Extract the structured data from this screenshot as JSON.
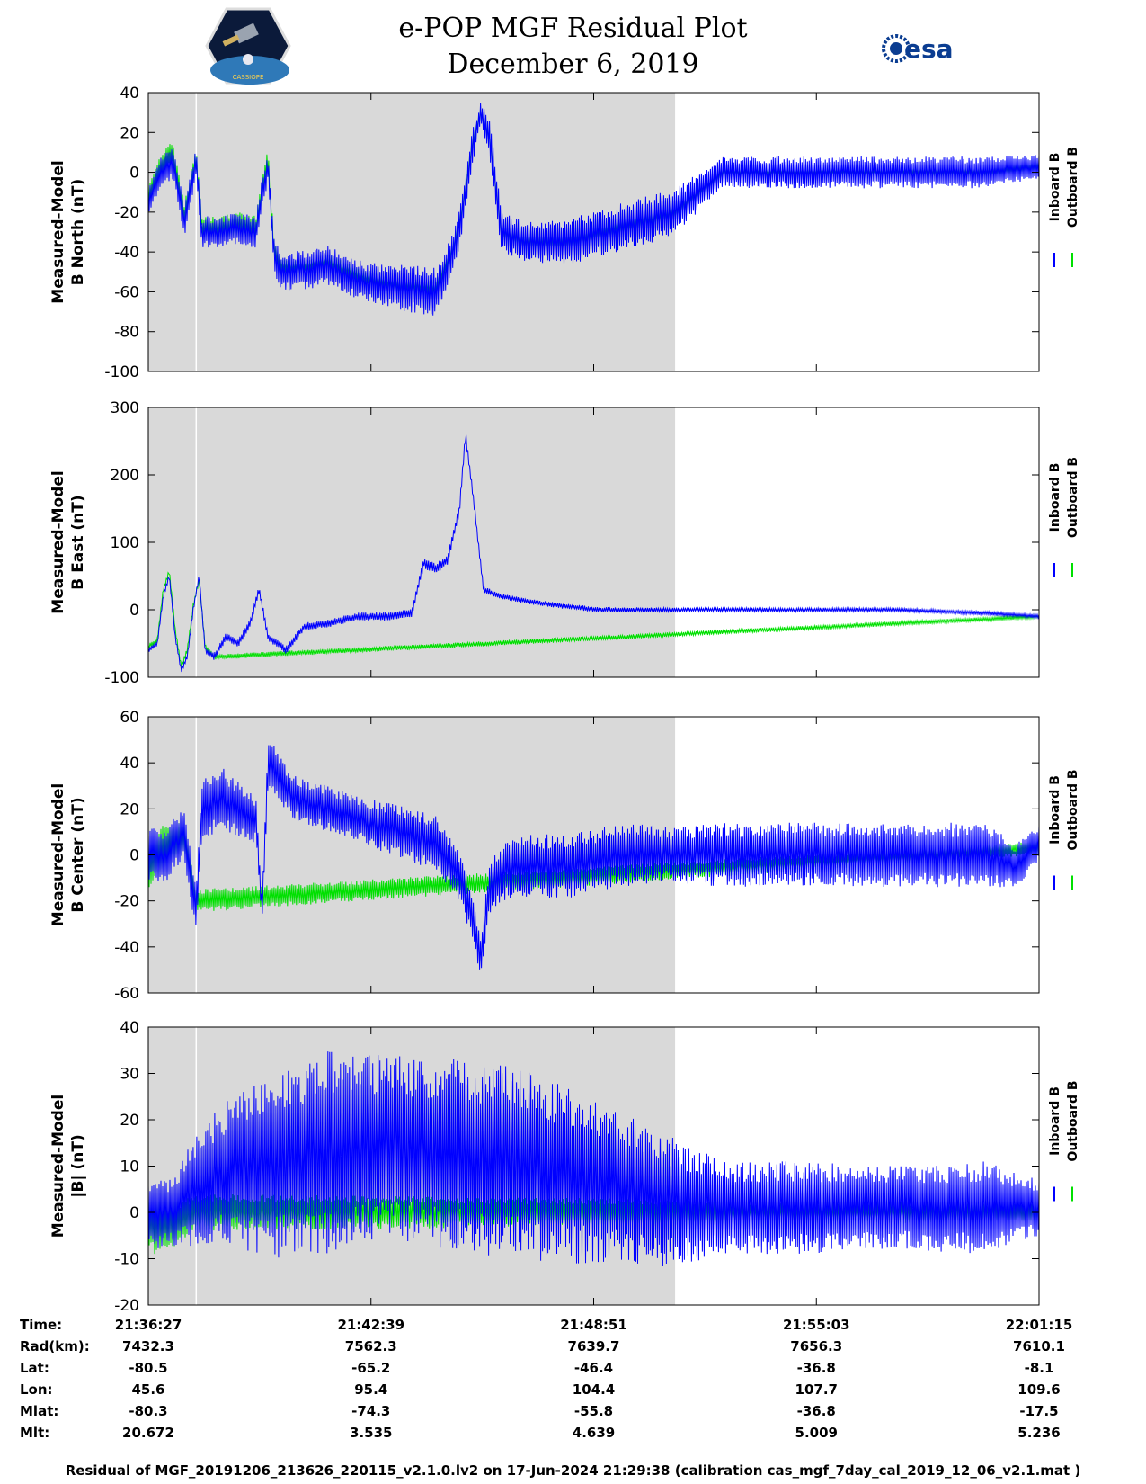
{
  "header": {
    "title_line1": "e-POP MGF Residual Plot",
    "title_line2": "December 6, 2019",
    "logo_left_icon": "cassiope-mission-patch",
    "logo_left_text": "CASSIOPE",
    "logo_right_icon": "esa-logo",
    "logo_right_text": "esa"
  },
  "colors": {
    "inboard": "#0000ff",
    "outboard": "#00e000",
    "shade": "#d9d9d9"
  },
  "chart_data": [
    {
      "type": "line",
      "ylabel_line1": "Measured-Model",
      "ylabel_line2": "B North (nT)",
      "ylim": [
        -100,
        40
      ],
      "yticks": [
        "40",
        "20",
        "0",
        "-20",
        "-40",
        "-60",
        "-80",
        "-100"
      ],
      "x_range_s": [
        0,
        1488
      ],
      "shaded_interval_s": [
        0,
        880
      ],
      "gap_marker_s": 80,
      "legend": [
        "Inboard B",
        "Outboard B"
      ],
      "series": [
        {
          "name": "Inboard B",
          "x_s": [
            0,
            20,
            40,
            50,
            60,
            80,
            90,
            120,
            150,
            180,
            190,
            200,
            210,
            220,
            240,
            300,
            360,
            420,
            480,
            510,
            525,
            540,
            555,
            570,
            590,
            630,
            700,
            760,
            820,
            880,
            960,
            1100,
            1250,
            1400,
            1488
          ],
          "values": [
            -15,
            0,
            5,
            -8,
            -25,
            5,
            -30,
            -30,
            -28,
            -30,
            -10,
            3,
            -40,
            -50,
            -50,
            -47,
            -55,
            -58,
            -60,
            -40,
            -20,
            10,
            30,
            18,
            -30,
            -35,
            -35,
            -30,
            -25,
            -20,
            0,
            0,
            0,
            0,
            3
          ],
          "noise": [
            8,
            8,
            8,
            8,
            8,
            8,
            8,
            8,
            8,
            8,
            8,
            8,
            10,
            10,
            10,
            10,
            10,
            12,
            12,
            10,
            10,
            10,
            5,
            10,
            10,
            10,
            12,
            12,
            12,
            12,
            8,
            8,
            8,
            8,
            6
          ]
        },
        {
          "name": "Outboard B",
          "x_s": [
            0,
            20,
            40,
            50,
            60,
            80,
            90,
            120,
            150,
            180,
            190,
            200,
            210,
            220,
            240,
            300,
            360,
            420,
            480,
            510,
            525,
            540,
            555,
            570,
            590,
            630,
            700,
            760,
            820,
            880,
            960,
            1100,
            1250,
            1400,
            1488
          ],
          "values": [
            -12,
            3,
            10,
            -5,
            -22,
            8,
            -28,
            -28,
            -26,
            -28,
            -8,
            6,
            -38,
            -47,
            -48,
            -45,
            -53,
            -57,
            -58,
            -38,
            -18,
            12,
            30,
            18,
            -30,
            -35,
            -35,
            -30,
            -25,
            -20,
            0,
            0,
            0,
            0,
            3
          ],
          "noise": [
            6,
            6,
            6,
            6,
            6,
            6,
            6,
            6,
            6,
            6,
            6,
            6,
            4,
            4,
            4,
            4,
            4,
            4,
            4,
            3,
            3,
            3,
            2,
            3,
            3,
            3,
            3,
            3,
            3,
            3,
            2,
            2,
            2,
            2,
            2
          ]
        }
      ]
    },
    {
      "type": "line",
      "ylabel_line1": "Measured-Model",
      "ylabel_line2": "B East (nT)",
      "ylim": [
        -100,
        300
      ],
      "yticks": [
        "300",
        "200",
        "100",
        "0",
        "-100"
      ],
      "x_range_s": [
        0,
        1488
      ],
      "shaded_interval_s": [
        0,
        880
      ],
      "gap_marker_s": 80,
      "legend": [
        "Inboard B",
        "Outboard B"
      ],
      "series": [
        {
          "name": "Inboard B",
          "x_s": [
            0,
            15,
            25,
            35,
            45,
            55,
            65,
            75,
            85,
            95,
            110,
            130,
            150,
            170,
            185,
            200,
            230,
            260,
            300,
            350,
            400,
            440,
            460,
            480,
            500,
            520,
            530,
            545,
            560,
            590,
            650,
            750,
            880,
            960,
            1100,
            1250,
            1400,
            1488
          ],
          "values": [
            -60,
            -50,
            20,
            50,
            -40,
            -90,
            -70,
            0,
            50,
            -60,
            -70,
            -40,
            -50,
            -20,
            30,
            -40,
            -60,
            -25,
            -20,
            -10,
            -10,
            -5,
            70,
            60,
            75,
            150,
            260,
            150,
            30,
            20,
            10,
            0,
            0,
            0,
            0,
            0,
            -5,
            -10
          ],
          "noise": [
            4,
            4,
            4,
            4,
            4,
            4,
            4,
            4,
            4,
            4,
            6,
            6,
            6,
            6,
            6,
            6,
            6,
            6,
            6,
            6,
            6,
            6,
            8,
            8,
            8,
            8,
            8,
            6,
            5,
            4,
            4,
            4,
            3,
            3,
            3,
            3,
            3,
            3
          ]
        },
        {
          "name": "Outboard B",
          "x_s": [
            0,
            15,
            25,
            35,
            45,
            55,
            65,
            75,
            85,
            95,
            110,
            1488
          ],
          "values": [
            -55,
            -45,
            30,
            58,
            -30,
            -85,
            -60,
            5,
            45,
            -55,
            -70,
            -10
          ],
          "noise": [
            4,
            4,
            4,
            4,
            4,
            4,
            4,
            4,
            4,
            4,
            4,
            3
          ]
        }
      ]
    },
    {
      "type": "line",
      "ylabel_line1": "Measured-Model",
      "ylabel_line2": "B Center (nT)",
      "ylim": [
        -60,
        60
      ],
      "yticks": [
        "60",
        "40",
        "20",
        "0",
        "-20",
        "-40",
        "-60"
      ],
      "x_range_s": [
        0,
        1488
      ],
      "shaded_interval_s": [
        0,
        880
      ],
      "gap_marker_s": 80,
      "legend": [
        "Inboard B",
        "Outboard B"
      ],
      "series": [
        {
          "name": "Inboard B",
          "x_s": [
            0,
            30,
            60,
            80,
            90,
            120,
            150,
            180,
            190,
            200,
            240,
            300,
            360,
            420,
            480,
            520,
            540,
            555,
            570,
            600,
            700,
            800,
            880,
            960,
            1100,
            1250,
            1400,
            1450,
            1488
          ],
          "values": [
            0,
            0,
            10,
            -25,
            20,
            25,
            20,
            15,
            -25,
            40,
            25,
            20,
            15,
            10,
            5,
            -10,
            -25,
            -45,
            -15,
            -5,
            -5,
            0,
            0,
            0,
            0,
            0,
            0,
            -5,
            5
          ],
          "noise": [
            12,
            12,
            12,
            10,
            14,
            14,
            12,
            10,
            6,
            12,
            10,
            10,
            10,
            12,
            12,
            12,
            10,
            8,
            12,
            14,
            14,
            14,
            12,
            14,
            14,
            14,
            14,
            10,
            8
          ]
        },
        {
          "name": "Outboard B",
          "x_s": [
            0,
            30,
            60,
            80,
            1488
          ],
          "values": [
            -5,
            5,
            8,
            -20,
            3
          ],
          "noise": [
            10,
            10,
            6,
            5,
            3
          ]
        }
      ]
    },
    {
      "type": "line",
      "ylabel_line1": "Measured-Model",
      "ylabel_line2": "|B| (nT)",
      "ylim": [
        -20,
        40
      ],
      "yticks": [
        "40",
        "30",
        "20",
        "10",
        "0",
        "-10",
        "-20"
      ],
      "x_range_s": [
        0,
        1488
      ],
      "shaded_interval_s": [
        0,
        880
      ],
      "gap_marker_s": 80,
      "legend": [
        "Inboard B",
        "Outboard B"
      ],
      "series": [
        {
          "name": "Inboard B",
          "x_s": [
            0,
            40,
            80,
            120,
            200,
            300,
            360,
            400,
            500,
            600,
            700,
            800,
            880,
            960,
            1100,
            1250,
            1400,
            1488
          ],
          "values": [
            0,
            0,
            5,
            8,
            10,
            13,
            14,
            14,
            13,
            11,
            8,
            5,
            2,
            1,
            1,
            1,
            1,
            1
          ],
          "noise": [
            8,
            8,
            12,
            15,
            20,
            22,
            20,
            20,
            21,
            21,
            19,
            16,
            14,
            10,
            10,
            9,
            10,
            6
          ]
        },
        {
          "name": "Outboard B",
          "x_s": [
            0,
            40,
            80,
            1488
          ],
          "values": [
            -3,
            -3,
            0,
            0
          ],
          "noise": [
            6,
            6,
            4,
            2
          ]
        }
      ]
    }
  ],
  "xaxis": {
    "ticks_s": [
      0,
      372,
      744,
      1116,
      1488
    ]
  },
  "info_table": {
    "labels": [
      "Time:",
      "Rad(km):",
      "Lat:",
      "Lon:",
      "Mlat:",
      "Mlt:"
    ],
    "columns": [
      [
        "21:36:27",
        "7432.3",
        "-80.5",
        "45.6",
        "-80.3",
        "20.672"
      ],
      [
        "21:42:39",
        "7562.3",
        "-65.2",
        "95.4",
        "-74.3",
        "3.535"
      ],
      [
        "21:48:51",
        "7639.7",
        "-46.4",
        "104.4",
        "-55.8",
        "4.639"
      ],
      [
        "21:55:03",
        "7656.3",
        "-36.8",
        "107.7",
        "-36.8",
        "5.009"
      ],
      [
        "22:01:15",
        "7610.1",
        "-8.1",
        "109.6",
        "-17.5",
        "5.236"
      ]
    ]
  },
  "footer": "Residual of MGF_20191206_213626_220115_v2.1.0.lv2 on 17-Jun-2024 21:29:38 (calibration cas_mgf_7day_cal_2019_12_06_v2.1.mat )"
}
